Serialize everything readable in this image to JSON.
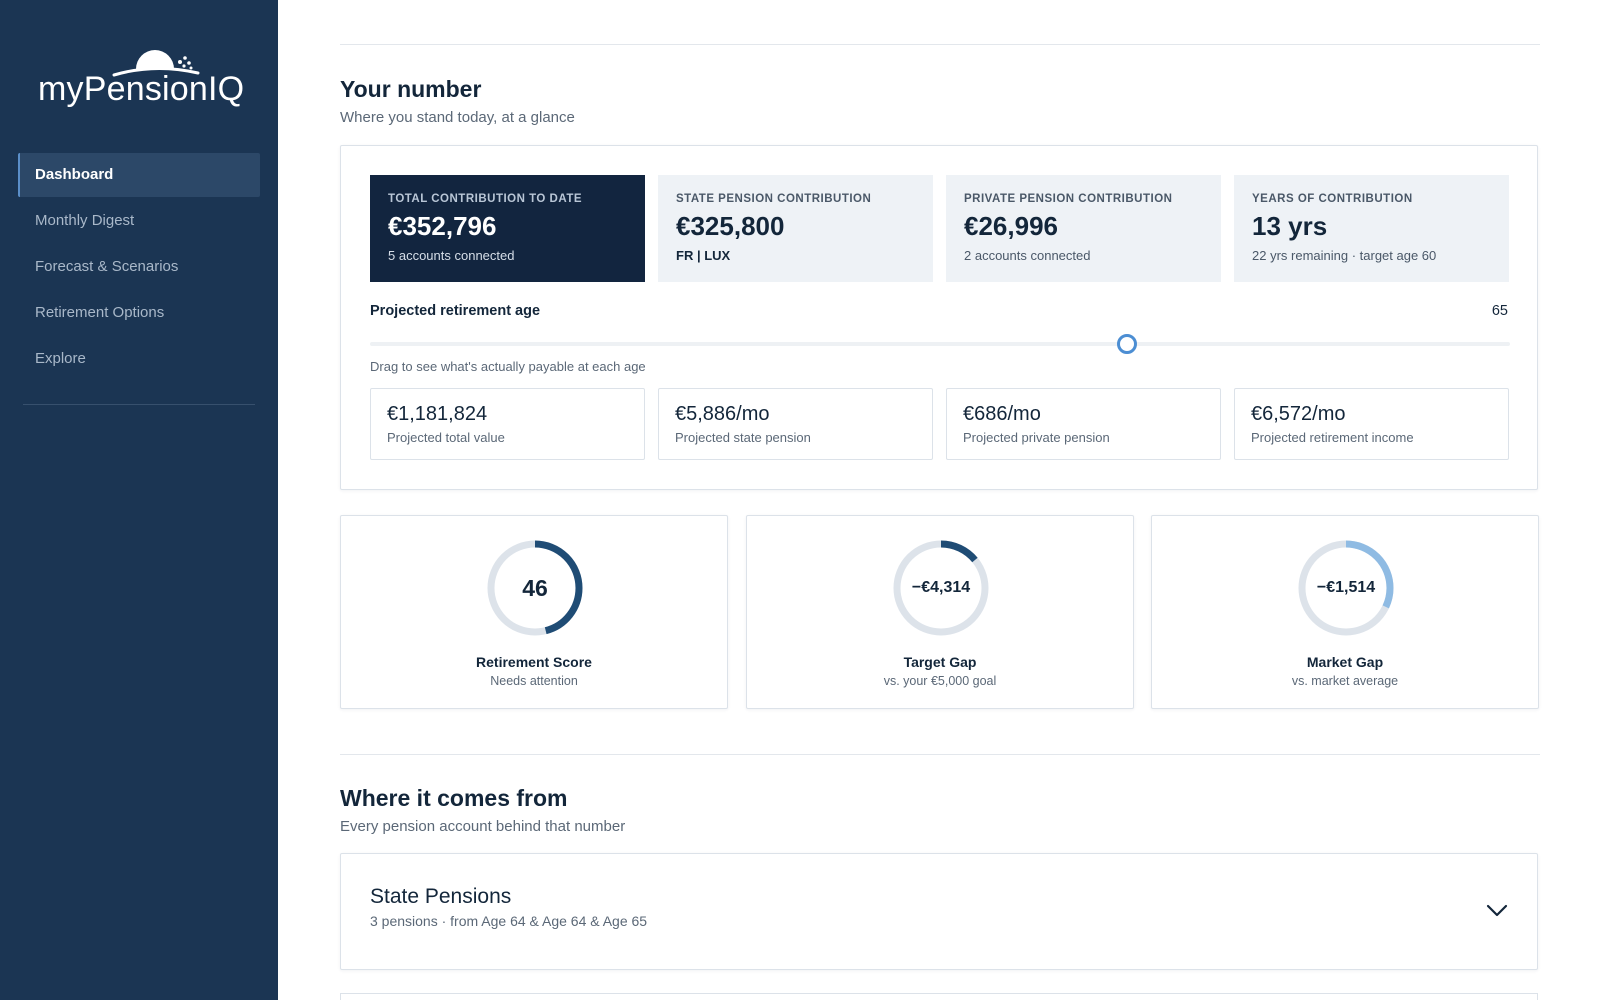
{
  "brand": {
    "name": "myPensionIQ"
  },
  "sidebar": {
    "items": [
      {
        "label": "Dashboard",
        "active": true
      },
      {
        "label": "Monthly Digest"
      },
      {
        "label": "Forecast & Scenarios"
      },
      {
        "label": "Retirement Options"
      },
      {
        "label": "Explore"
      }
    ]
  },
  "your_number": {
    "title": "Your number",
    "subtitle": "Where you stand today, at a glance",
    "stats": [
      {
        "label": "TOTAL CONTRIBUTION TO DATE",
        "value": "€352,796",
        "note": "5 accounts connected"
      },
      {
        "label": "STATE PENSION CONTRIBUTION",
        "value": "€325,800",
        "note": "FR | LUX"
      },
      {
        "label": "PRIVATE PENSION CONTRIBUTION",
        "value": "€26,996",
        "note": "2 accounts connected"
      },
      {
        "label": "YEARS OF CONTRIBUTION",
        "value": "13 yrs",
        "note": "22 yrs remaining · target age 60"
      }
    ],
    "retirement_age": {
      "label": "Projected retirement age",
      "value": "65",
      "slider_fraction": 0.664,
      "hint": "Drag to see what's actually payable at each age"
    },
    "projections": [
      {
        "value": "€1,181,824",
        "label": "Projected total value"
      },
      {
        "value": "€5,886/mo",
        "label": "Projected state pension"
      },
      {
        "value": "€686/mo",
        "label": "Projected private pension"
      },
      {
        "value": "€6,572/mo",
        "label": "Projected retirement income"
      }
    ]
  },
  "gauges": [
    {
      "value": "46",
      "title": "Retirement Score",
      "subtitle": "Needs attention",
      "fraction": 0.46,
      "color": "#1f4c75"
    },
    {
      "value": "−€4,314",
      "title": "Target Gap",
      "subtitle": "vs. your €5,000 goal",
      "fraction": 0.14,
      "color": "#1f4c75"
    },
    {
      "value": "−€1,514",
      "title": "Market Gap",
      "subtitle": "vs. market average",
      "fraction": 0.32,
      "color": "#8fbbe3"
    }
  ],
  "where_from": {
    "title": "Where it comes from",
    "subtitle": "Every pension account behind that number",
    "accordion": {
      "title": "State Pensions",
      "subtitle": "3 pensions · from Age 64 & Age 64 & Age 65",
      "icon": "chevron-down-icon"
    }
  },
  "colors": {
    "sidebar": "#1b3553",
    "accent": "#4c8ed3",
    "dark_card": "#12253f",
    "gauge_track": "#dde3ea"
  }
}
